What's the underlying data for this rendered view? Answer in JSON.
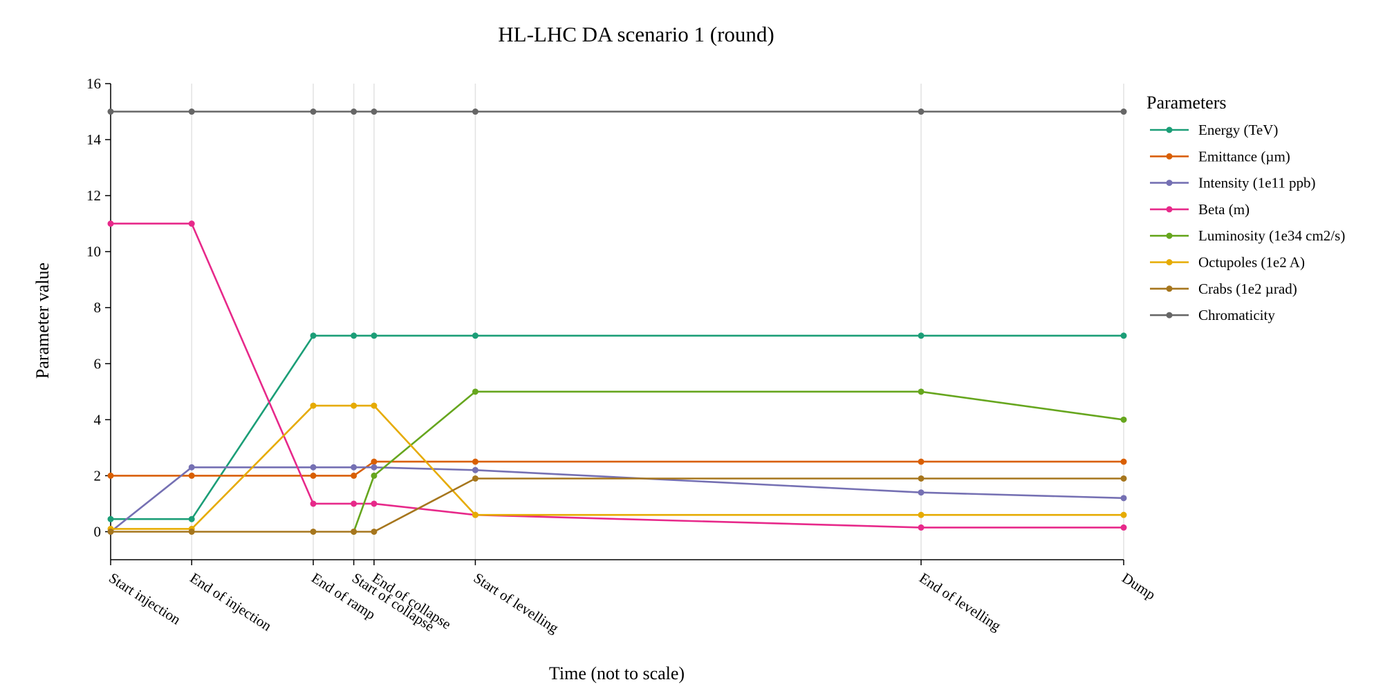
{
  "chart_data": {
    "type": "line",
    "title": "HL-LHC DA scenario 1 (round)",
    "xlabel": "Time (not to scale)",
    "ylabel": "Parameter value",
    "ylim": [
      -1,
      16
    ],
    "yticks": [
      0,
      2,
      4,
      6,
      8,
      10,
      12,
      14,
      16
    ],
    "x_scale_note": "",
    "categories": [
      "Start injection",
      "End of injection",
      "End of ramp",
      "Start of collapse",
      "End of collapse",
      "Start of levelling",
      "End of levelling",
      "Dump"
    ],
    "x_positions": [
      0,
      1,
      2.5,
      3,
      3.25,
      4.5,
      10,
      12.5
    ],
    "grid": "vertical lines at each category",
    "legend": {
      "title": "Parameters",
      "placement": "right"
    },
    "series": [
      {
        "name": "Energy (TeV)",
        "color": "#1b9e77",
        "values": [
          0.45,
          0.45,
          7,
          7,
          7,
          7,
          7,
          7
        ]
      },
      {
        "name": "Emittance (µm)",
        "color": "#d95f02",
        "values": [
          2,
          2,
          2,
          2,
          2.5,
          2.5,
          2.5,
          2.5
        ]
      },
      {
        "name": "Intensity (1e11 ppb)",
        "color": "#7570b3",
        "values": [
          0,
          2.3,
          2.3,
          2.3,
          2.3,
          2.2,
          1.4,
          1.2
        ]
      },
      {
        "name": "Beta (m)",
        "color": "#e7298a",
        "values": [
          11,
          11,
          1,
          1,
          1,
          0.6,
          0.15,
          0.15
        ]
      },
      {
        "name": "Luminosity (1e34 cm2/s)",
        "color": "#66a61e",
        "values": [
          null,
          null,
          null,
          0,
          2,
          5,
          5,
          4
        ]
      },
      {
        "name": "Octupoles (1e2 A)",
        "color": "#e6ab02",
        "values": [
          0.1,
          0.1,
          4.5,
          4.5,
          4.5,
          0.6,
          0.6,
          0.6
        ]
      },
      {
        "name": "Crabs (1e2 µrad)",
        "color": "#a6761d",
        "values": [
          0,
          0,
          0,
          0,
          0,
          1.9,
          1.9,
          1.9
        ]
      },
      {
        "name": "Chromaticity",
        "color": "#666666",
        "values": [
          15,
          15,
          15,
          15,
          15,
          15,
          15,
          15
        ]
      }
    ]
  }
}
